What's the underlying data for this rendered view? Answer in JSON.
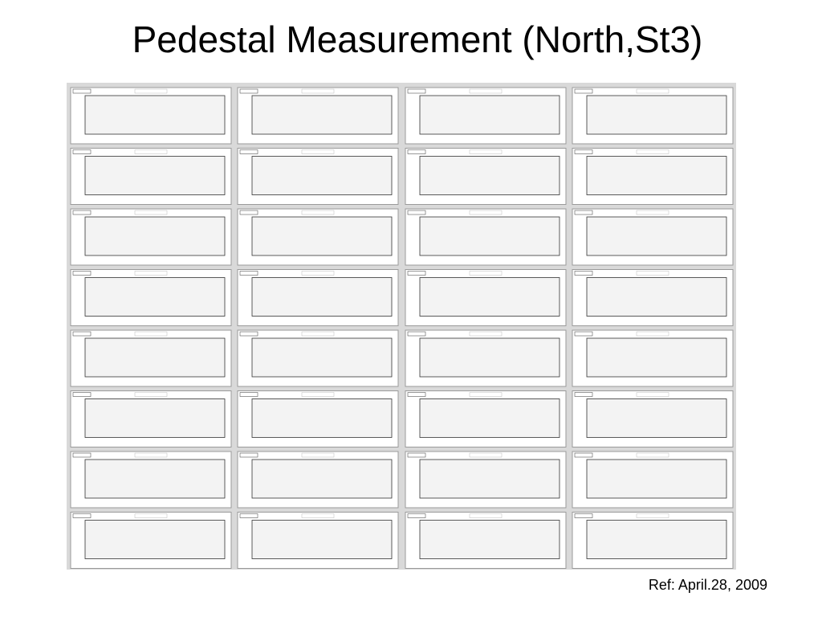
{
  "header": {
    "title": "Pedestal Measurement (North,St3)"
  },
  "footer": {
    "reference": "Ref: April.28, 2009"
  }
}
